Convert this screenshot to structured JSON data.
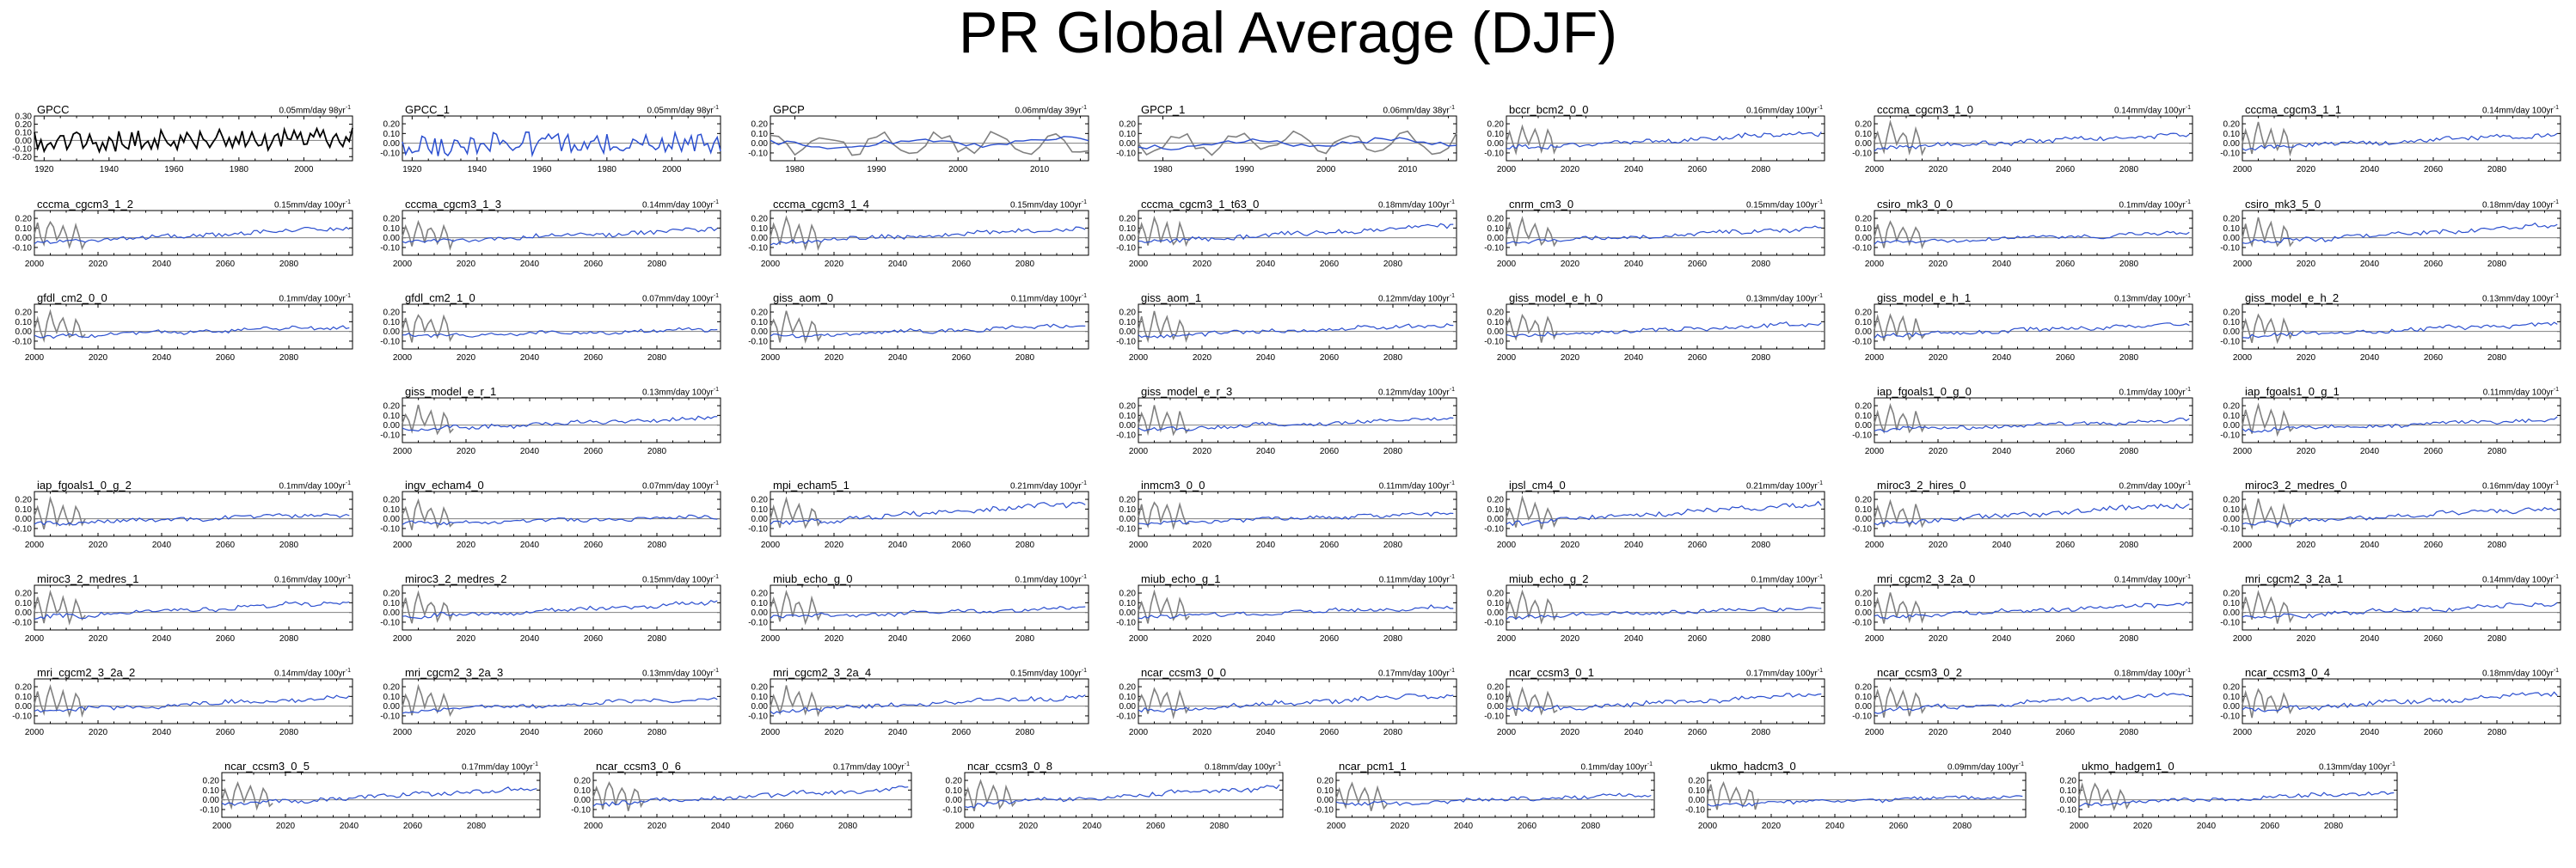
{
  "title": "PR Global Average (DJF)",
  "chart_data": {
    "type": "line",
    "colors": {
      "observations": "#000000",
      "observations_overlay": "#808080",
      "model": "#2b4fcf",
      "zero_line": "#808080"
    },
    "y_ticks": [
      "0.20",
      "0.10",
      "0.00",
      "-0.10"
    ],
    "y_ticks_gpcc": [
      "0.30",
      "0.20",
      "0.10",
      "0.00",
      "-0.10",
      "-0.20"
    ],
    "x_ticks_obs_long": [
      "1920",
      "1940",
      "1960",
      "1980",
      "2000"
    ],
    "x_ticks_obs_short": [
      "1980",
      "1990",
      "2000",
      "2010"
    ],
    "x_ticks_model": [
      "2000",
      "2020",
      "2040",
      "2060",
      "2080"
    ],
    "panels": [
      {
        "name": "GPCC",
        "trend": "0.05mm/day 98yr",
        "kind": "obs",
        "x_range": [
          1917,
          2015
        ],
        "ylim": [
          -0.25,
          0.3
        ]
      },
      {
        "name": "GPCC_1",
        "trend": "0.05mm/day 98yr",
        "kind": "obs_overlay",
        "x_range": [
          1917,
          2015
        ],
        "ylim": [
          -0.18,
          0.28
        ]
      },
      {
        "name": "GPCP",
        "trend": "0.06mm/day 39yr",
        "kind": "obs_short",
        "x_range": [
          1977,
          2016
        ],
        "ylim": [
          -0.18,
          0.28
        ]
      },
      {
        "name": "GPCP_1",
        "trend": "0.06mm/day 38yr",
        "kind": "obs_short",
        "x_range": [
          1977,
          2016
        ],
        "ylim": [
          -0.18,
          0.28
        ]
      },
      {
        "name": "bccr_bcm2_0_0",
        "trend": "0.16mm/day 100yr",
        "kind": "model",
        "x_range": [
          2000,
          2100
        ],
        "ylim": [
          -0.18,
          0.28
        ]
      },
      {
        "name": "cccma_cgcm3_1_0",
        "trend": "0.14mm/day 100yr",
        "kind": "model",
        "x_range": [
          2000,
          2100
        ],
        "ylim": [
          -0.18,
          0.28
        ]
      },
      {
        "name": "cccma_cgcm3_1_1",
        "trend": "0.14mm/day 100yr",
        "kind": "model",
        "x_range": [
          2000,
          2100
        ],
        "ylim": [
          -0.18,
          0.28
        ]
      },
      {
        "name": "cccma_cgcm3_1_2",
        "trend": "0.15mm/day 100yr",
        "kind": "model",
        "x_range": [
          2000,
          2100
        ],
        "ylim": [
          -0.18,
          0.28
        ]
      },
      {
        "name": "cccma_cgcm3_1_3",
        "trend": "0.14mm/day 100yr",
        "kind": "model",
        "x_range": [
          2000,
          2100
        ],
        "ylim": [
          -0.18,
          0.28
        ]
      },
      {
        "name": "cccma_cgcm3_1_4",
        "trend": "0.15mm/day 100yr",
        "kind": "model",
        "x_range": [
          2000,
          2100
        ],
        "ylim": [
          -0.18,
          0.28
        ]
      },
      {
        "name": "cccma_cgcm3_1_t63_0",
        "trend": "0.18mm/day 100yr",
        "kind": "model",
        "x_range": [
          2000,
          2100
        ],
        "ylim": [
          -0.18,
          0.28
        ]
      },
      {
        "name": "cnrm_cm3_0",
        "trend": "0.15mm/day 100yr",
        "kind": "model",
        "x_range": [
          2000,
          2100
        ],
        "ylim": [
          -0.18,
          0.28
        ]
      },
      {
        "name": "csiro_mk3_0_0",
        "trend": "0.1mm/day 100yr",
        "kind": "model",
        "x_range": [
          2000,
          2100
        ],
        "ylim": [
          -0.18,
          0.28
        ]
      },
      {
        "name": "csiro_mk3_5_0",
        "trend": "0.18mm/day 100yr",
        "kind": "model",
        "x_range": [
          2000,
          2100
        ],
        "ylim": [
          -0.18,
          0.28
        ]
      },
      {
        "name": "gfdl_cm2_0_0",
        "trend": "0.1mm/day 100yr",
        "kind": "model",
        "x_range": [
          2000,
          2100
        ],
        "ylim": [
          -0.18,
          0.28
        ]
      },
      {
        "name": "gfdl_cm2_1_0",
        "trend": "0.07mm/day 100yr",
        "kind": "model",
        "x_range": [
          2000,
          2100
        ],
        "ylim": [
          -0.18,
          0.28
        ]
      },
      {
        "name": "giss_aom_0",
        "trend": "0.11mm/day 100yr",
        "kind": "model",
        "x_range": [
          2000,
          2100
        ],
        "ylim": [
          -0.18,
          0.28
        ]
      },
      {
        "name": "giss_aom_1",
        "trend": "0.12mm/day 100yr",
        "kind": "model",
        "x_range": [
          2000,
          2100
        ],
        "ylim": [
          -0.18,
          0.28
        ]
      },
      {
        "name": "giss_model_e_h_0",
        "trend": "0.13mm/day 100yr",
        "kind": "model",
        "x_range": [
          2000,
          2100
        ],
        "ylim": [
          -0.18,
          0.28
        ]
      },
      {
        "name": "giss_model_e_h_1",
        "trend": "0.13mm/day 100yr",
        "kind": "model",
        "x_range": [
          2000,
          2100
        ],
        "ylim": [
          -0.18,
          0.28
        ]
      },
      {
        "name": "giss_model_e_h_2",
        "trend": "0.13mm/day 100yr",
        "kind": "model",
        "x_range": [
          2000,
          2100
        ],
        "ylim": [
          -0.18,
          0.28
        ]
      },
      {
        "name": "giss_model_e_r_1",
        "trend": "0.13mm/day 100yr",
        "kind": "model",
        "x_range": [
          2000,
          2100
        ],
        "ylim": [
          -0.18,
          0.28
        ]
      },
      {
        "name": "giss_model_e_r_3",
        "trend": "0.12mm/day 100yr",
        "kind": "model",
        "x_range": [
          2000,
          2100
        ],
        "ylim": [
          -0.18,
          0.28
        ]
      },
      {
        "name": "iap_fgoals1_0_g_0",
        "trend": "0.1mm/day 100yr",
        "kind": "model",
        "x_range": [
          2000,
          2100
        ],
        "ylim": [
          -0.18,
          0.28
        ]
      },
      {
        "name": "iap_fgoals1_0_g_1",
        "trend": "0.11mm/day 100yr",
        "kind": "model",
        "x_range": [
          2000,
          2100
        ],
        "ylim": [
          -0.18,
          0.28
        ]
      },
      {
        "name": "iap_fgoals1_0_g_2",
        "trend": "0.1mm/day 100yr",
        "kind": "model",
        "x_range": [
          2000,
          2100
        ],
        "ylim": [
          -0.18,
          0.28
        ]
      },
      {
        "name": "ingv_echam4_0",
        "trend": "0.07mm/day 100yr",
        "kind": "model",
        "x_range": [
          2000,
          2100
        ],
        "ylim": [
          -0.18,
          0.28
        ]
      },
      {
        "name": "mpi_echam5_1",
        "trend": "0.21mm/day 100yr",
        "kind": "model",
        "x_range": [
          2000,
          2100
        ],
        "ylim": [
          -0.18,
          0.28
        ]
      },
      {
        "name": "inmcm3_0_0",
        "trend": "0.11mm/day 100yr",
        "kind": "model",
        "x_range": [
          2000,
          2100
        ],
        "ylim": [
          -0.18,
          0.28
        ]
      },
      {
        "name": "ipsl_cm4_0",
        "trend": "0.21mm/day 100yr",
        "kind": "model",
        "x_range": [
          2000,
          2100
        ],
        "ylim": [
          -0.18,
          0.28
        ]
      },
      {
        "name": "miroc3_2_hires_0",
        "trend": "0.2mm/day 100yr",
        "kind": "model",
        "x_range": [
          2000,
          2100
        ],
        "ylim": [
          -0.18,
          0.28
        ]
      },
      {
        "name": "miroc3_2_medres_0",
        "trend": "0.16mm/day 100yr",
        "kind": "model",
        "x_range": [
          2000,
          2100
        ],
        "ylim": [
          -0.18,
          0.28
        ]
      },
      {
        "name": "miroc3_2_medres_1",
        "trend": "0.16mm/day 100yr",
        "kind": "model",
        "x_range": [
          2000,
          2100
        ],
        "ylim": [
          -0.18,
          0.28
        ]
      },
      {
        "name": "miroc3_2_medres_2",
        "trend": "0.15mm/day 100yr",
        "kind": "model",
        "x_range": [
          2000,
          2100
        ],
        "ylim": [
          -0.18,
          0.28
        ]
      },
      {
        "name": "miub_echo_g_0",
        "trend": "0.1mm/day 100yr",
        "kind": "model",
        "x_range": [
          2000,
          2100
        ],
        "ylim": [
          -0.18,
          0.28
        ]
      },
      {
        "name": "miub_echo_g_1",
        "trend": "0.11mm/day 100yr",
        "kind": "model",
        "x_range": [
          2000,
          2100
        ],
        "ylim": [
          -0.18,
          0.28
        ]
      },
      {
        "name": "miub_echo_g_2",
        "trend": "0.1mm/day 100yr",
        "kind": "model",
        "x_range": [
          2000,
          2100
        ],
        "ylim": [
          -0.18,
          0.28
        ]
      },
      {
        "name": "mri_cgcm2_3_2a_0",
        "trend": "0.14mm/day 100yr",
        "kind": "model",
        "x_range": [
          2000,
          2100
        ],
        "ylim": [
          -0.18,
          0.28
        ]
      },
      {
        "name": "mri_cgcm2_3_2a_1",
        "trend": "0.14mm/day 100yr",
        "kind": "model",
        "x_range": [
          2000,
          2100
        ],
        "ylim": [
          -0.18,
          0.28
        ]
      },
      {
        "name": "mri_cgcm2_3_2a_2",
        "trend": "0.14mm/day 100yr",
        "kind": "model",
        "x_range": [
          2000,
          2100
        ],
        "ylim": [
          -0.18,
          0.28
        ]
      },
      {
        "name": "mri_cgcm2_3_2a_3",
        "trend": "0.13mm/day 100yr",
        "kind": "model",
        "x_range": [
          2000,
          2100
        ],
        "ylim": [
          -0.18,
          0.28
        ]
      },
      {
        "name": "mri_cgcm2_3_2a_4",
        "trend": "0.15mm/day 100yr",
        "kind": "model",
        "x_range": [
          2000,
          2100
        ],
        "ylim": [
          -0.18,
          0.28
        ]
      },
      {
        "name": "ncar_ccsm3_0_0",
        "trend": "0.17mm/day 100yr",
        "kind": "model",
        "x_range": [
          2000,
          2100
        ],
        "ylim": [
          -0.18,
          0.28
        ]
      },
      {
        "name": "ncar_ccsm3_0_1",
        "trend": "0.17mm/day 100yr",
        "kind": "model",
        "x_range": [
          2000,
          2100
        ],
        "ylim": [
          -0.18,
          0.28
        ]
      },
      {
        "name": "ncar_ccsm3_0_2",
        "trend": "0.18mm/day 100yr",
        "kind": "model",
        "x_range": [
          2000,
          2100
        ],
        "ylim": [
          -0.18,
          0.28
        ]
      },
      {
        "name": "ncar_ccsm3_0_4",
        "trend": "0.18mm/day 100yr",
        "kind": "model",
        "x_range": [
          2000,
          2100
        ],
        "ylim": [
          -0.18,
          0.28
        ]
      },
      {
        "name": "ncar_ccsm3_0_5",
        "trend": "0.17mm/day 100yr",
        "kind": "model",
        "x_range": [
          2000,
          2100
        ],
        "ylim": [
          -0.18,
          0.28
        ]
      },
      {
        "name": "ncar_ccsm3_0_6",
        "trend": "0.17mm/day 100yr",
        "kind": "model",
        "x_range": [
          2000,
          2100
        ],
        "ylim": [
          -0.18,
          0.28
        ]
      },
      {
        "name": "ncar_ccsm3_0_8",
        "trend": "0.18mm/day 100yr",
        "kind": "model",
        "x_range": [
          2000,
          2100
        ],
        "ylim": [
          -0.18,
          0.28
        ]
      },
      {
        "name": "ncar_pcm1_1",
        "trend": "0.1mm/day 100yr",
        "kind": "model",
        "x_range": [
          2000,
          2100
        ],
        "ylim": [
          -0.18,
          0.28
        ]
      },
      {
        "name": "ukmo_hadcm3_0",
        "trend": "0.09mm/day 100yr",
        "kind": "model",
        "x_range": [
          2000,
          2100
        ],
        "ylim": [
          -0.18,
          0.28
        ]
      },
      {
        "name": "ukmo_hadgem1_0",
        "trend": "0.13mm/day 100yr",
        "kind": "model",
        "x_range": [
          2000,
          2100
        ],
        "ylim": [
          -0.18,
          0.28
        ]
      }
    ]
  }
}
